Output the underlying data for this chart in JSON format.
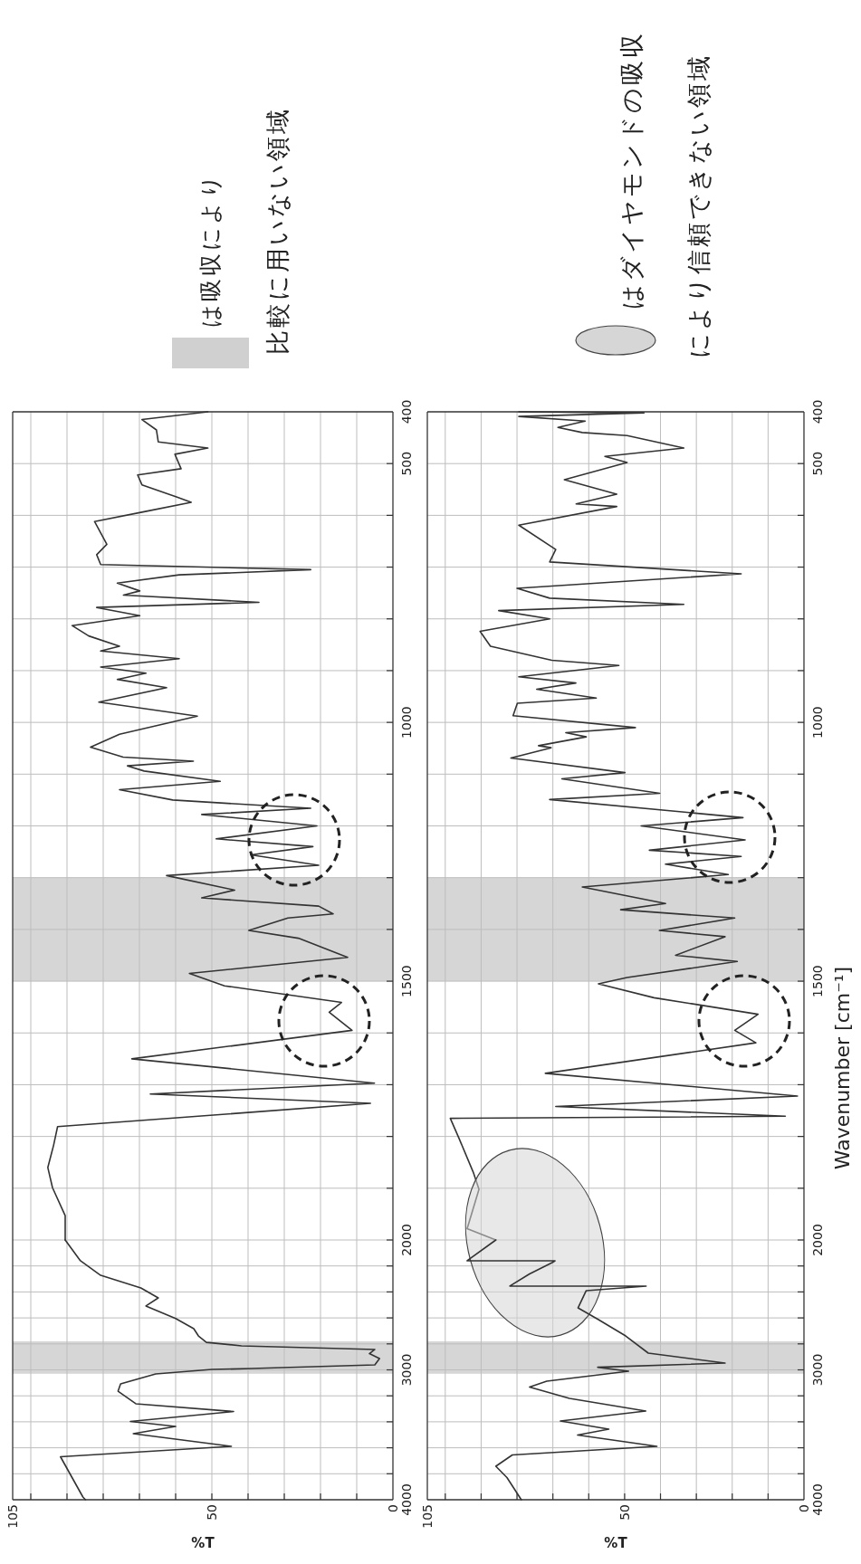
{
  "chart_data": [
    {
      "type": "line",
      "xlim": [
        105,
        0
      ],
      "ylim": [
        2000,
        400
      ],
      "tick_labels": "y",
      "xticks": [
        105,
        {
          "value": 100,
          "label": null
        },
        {
          "value": 90,
          "label": null
        },
        {
          "value": 80,
          "label": null
        },
        {
          "value": 70,
          "label": null
        },
        {
          "value": 60,
          "label": null
        },
        50,
        {
          "value": 40,
          "label": null
        },
        {
          "value": 30,
          "label": null
        },
        {
          "value": 20,
          "label": null
        },
        {
          "value": 10,
          "label": null
        },
        0
      ],
      "yticks": [
        2000,
        {
          "value": 1900,
          "label": null
        },
        {
          "value": 1800,
          "label": null
        },
        {
          "value": 1700,
          "label": null
        },
        {
          "value": 1600,
          "label": null
        },
        1500,
        {
          "value": 1400,
          "label": null
        },
        {
          "value": 1300,
          "label": null
        },
        {
          "value": 1200,
          "label": null
        },
        {
          "value": 1100,
          "label": null
        },
        1000,
        {
          "value": 900,
          "label": null
        },
        {
          "value": 800,
          "label": null
        },
        {
          "value": 700,
          "label": null
        },
        {
          "value": 600,
          "label": null
        },
        500,
        400
      ],
      "grid": true,
      "bands": [
        {
          "axis": "y",
          "from": 1300,
          "to": 1500,
          "color": "#d6d6d6"
        }
      ],
      "annotations": [
        "は吸収により",
        "比較に用いない領域"
      ],
      "series": [
        {
          "color": "#333333",
          "x": [
            51.1,
            69.3,
            65.3,
            64.8,
            51.1,
            60.2,
            58.5,
            70.5,
            69.3,
            59.6,
            55.7,
            68.7,
            82.4,
            79,
            81.8,
            80.7,
            22.7,
            59,
            76.1,
            69.9,
            74.4,
            37,
            81.8,
            69.9,
            88.6,
            84,
            75.5,
            80.7,
            59,
            80.7,
            68.2,
            76.1,
            62.5,
            81.2,
            54,
            75.5,
            83.5,
            74.5,
            55.1,
            73.3,
            68.7,
            47.7,
            75.5,
            60.8,
            22.7,
            52.8,
            21,
            48.8,
            22.1,
            39.2,
            20.5,
            62.5,
            43.7,
            52.8,
            20.5,
            16.5,
            29,
            39.8,
            26.1,
            12.5,
            56.2,
            46.5,
            14.2,
            17.6,
            11.3,
            72.1,
            5.1,
            67,
            6.2,
            92.6,
            93.7,
            95.3,
            94,
            90.5,
            90.5
          ],
          "values": [
            400,
            415,
            435,
            458,
            470,
            482,
            510,
            522,
            541,
            565,
            575,
            593,
            612,
            656,
            676,
            695,
            705,
            715,
            731,
            746,
            754,
            768,
            778,
            794,
            813,
            833,
            853,
            862,
            877,
            893,
            905,
            917,
            933,
            961,
            988,
            1023,
            1048,
            1067,
            1075,
            1084,
            1094,
            1114,
            1130,
            1150,
            1166,
            1178,
            1200,
            1225,
            1240,
            1256,
            1276,
            1296,
            1324,
            1339,
            1355,
            1370,
            1378,
            1402,
            1417,
            1454,
            1485,
            1509,
            1541,
            1560,
            1595,
            1650,
            1697,
            1718,
            1736,
            1781,
            1817,
            1860,
            1899,
            1953,
            2000
          ]
        }
      ]
    },
    {
      "type": "line",
      "xlim": [
        105,
        0
      ],
      "ylim": [
        4000,
        2000
      ],
      "xticks": [
        105,
        {
          "value": 100,
          "label": null
        },
        {
          "value": 90,
          "label": null
        },
        {
          "value": 80,
          "label": null
        },
        {
          "value": 70,
          "label": null
        },
        {
          "value": 60,
          "label": null
        },
        50,
        {
          "value": 40,
          "label": null
        },
        {
          "value": 30,
          "label": null
        },
        {
          "value": 20,
          "label": null
        },
        {
          "value": 10,
          "label": null
        },
        0
      ],
      "yticks": [
        4000,
        {
          "value": 3800,
          "label": null
        },
        {
          "value": 3600,
          "label": null
        },
        {
          "value": 3400,
          "label": null
        },
        {
          "value": 3200,
          "label": null
        },
        3000,
        {
          "value": 2800,
          "label": null
        },
        {
          "value": 2600,
          "label": null
        },
        {
          "value": 2400,
          "label": null
        },
        {
          "value": 2200,
          "label": null
        }
      ],
      "xlabel": "%T",
      "grid": true,
      "bands": [
        {
          "axis": "y",
          "from": 2780,
          "to": 3030,
          "color": "#d6d6d6"
        }
      ],
      "series": [
        {
          "color": "#333333",
          "x": [
            90.5,
            86.3,
            80.7,
            69.6,
            64.8,
            68.2,
            60,
            55,
            53.7,
            51.5,
            41.8,
            5,
            6.5,
            3.7,
            5,
            39,
            50,
            65.5,
            75.2,
            75.9,
            71,
            44,
            72.5,
            60,
            71.7,
            44.6,
            91.8,
            85.6,
            84.9
          ],
          "values": [
            2000,
            2160,
            2272,
            2369,
            2446,
            2508,
            2605,
            2683,
            2739,
            2788,
            2815,
            2843,
            2875,
            2913,
            2962,
            2990,
            2997,
            3031,
            3108,
            3164,
            3261,
            3321,
            3397,
            3436,
            3491,
            3589,
            3669,
            3979,
            4000
          ]
        }
      ]
    },
    {
      "type": "line",
      "xlim": [
        105,
        0
      ],
      "ylim": [
        2000,
        400
      ],
      "tick_labels": "y",
      "xticks": [
        105,
        {
          "value": 100,
          "label": null
        },
        {
          "value": 90,
          "label": null
        },
        {
          "value": 80,
          "label": null
        },
        {
          "value": 70,
          "label": null
        },
        {
          "value": 60,
          "label": null
        },
        50,
        {
          "value": 40,
          "label": null
        },
        {
          "value": 30,
          "label": null
        },
        {
          "value": 20,
          "label": null
        },
        {
          "value": 10,
          "label": null
        },
        0
      ],
      "yticks": [
        2000,
        {
          "value": 1900,
          "label": null
        },
        {
          "value": 1800,
          "label": null
        },
        {
          "value": 1700,
          "label": null
        },
        {
          "value": 1600,
          "label": null
        },
        1500,
        {
          "value": 1400,
          "label": null
        },
        {
          "value": 1300,
          "label": null
        },
        {
          "value": 1200,
          "label": null
        },
        {
          "value": 1100,
          "label": null
        },
        1000,
        {
          "value": 900,
          "label": null
        },
        {
          "value": 800,
          "label": null
        },
        {
          "value": 700,
          "label": null
        },
        {
          "value": 600,
          "label": null
        },
        500,
        400
      ],
      "ylabel": "Wavenumber [cm⁻¹]",
      "grid": true,
      "bands": [
        {
          "axis": "y",
          "from": 1300,
          "to": 1500,
          "color": "#d6d6d6"
        }
      ],
      "annotations": [
        "はダイヤモンドの吸収",
        "により信頼できない領域"
      ],
      "series": [
        {
          "color": "#333333",
          "x": [
            79.5,
            44.6,
            79.5,
            61,
            68.6,
            61.8,
            49.3,
            33.5,
            55.5,
            49.3,
            66.8,
            52.2,
            63.5,
            52.2,
            79.5,
            69.2,
            70.9,
            17.5,
            80,
            70.9,
            33.5,
            85.1,
            70.9,
            90.3,
            87.4,
            70.3,
            51.6,
            79.5,
            63.6,
            74.5,
            57.9,
            79.9,
            81.1,
            47,
            66.4,
            60.7,
            74,
            70.5,
            81.7,
            49.9,
            67.5,
            40.2,
            70.9,
            17,
            45.4,
            16.4,
            43.1,
            17.5,
            38.6,
            21.1,
            61.8,
            38.6,
            51.1,
            19.3,
            40.3,
            22,
            35.8,
            18.6,
            49.3,
            57.3,
            41.8,
            12.8,
            19.3,
            13.4,
            72.1,
            1.8,
            69.2,
            5.2,
            98.6,
            96.2,
            92.2,
            90.6,
            93.9,
            85.9
          ],
          "values": [
            400,
            402,
            409,
            418,
            430,
            440,
            446,
            470,
            486,
            498,
            531,
            559,
            578,
            583,
            619,
            666,
            690,
            713,
            741,
            760,
            772,
            784,
            800,
            824,
            853,
            880,
            890,
            912,
            924,
            936,
            953,
            963,
            987,
            1010,
            1020,
            1028,
            1045,
            1049,
            1069,
            1097,
            1109,
            1137,
            1149,
            1184,
            1200,
            1227,
            1247,
            1259,
            1274,
            1294,
            1318,
            1350,
            1362,
            1378,
            1402,
            1414,
            1450,
            1462,
            1493,
            1505,
            1532,
            1564,
            1595,
            1619,
            1678,
            1722,
            1742,
            1761,
            1765,
            1803,
            1869,
            1902,
            1978,
            2000
          ]
        }
      ]
    },
    {
      "type": "line",
      "xlim": [
        105,
        0
      ],
      "ylim": [
        4000,
        2000
      ],
      "xticks": [
        105,
        {
          "value": 100,
          "label": null
        },
        {
          "value": 90,
          "label": null
        },
        {
          "value": 80,
          "label": null
        },
        {
          "value": 70,
          "label": null
        },
        {
          "value": 60,
          "label": null
        },
        50,
        {
          "value": 40,
          "label": null
        },
        {
          "value": 30,
          "label": null
        },
        {
          "value": 20,
          "label": null
        },
        {
          "value": 10,
          "label": null
        },
        0
      ],
      "yticks": [
        4000,
        {
          "value": 3800,
          "label": null
        },
        {
          "value": 3600,
          "label": null
        },
        {
          "value": 3400,
          "label": null
        },
        {
          "value": 3200,
          "label": null
        },
        3000,
        {
          "value": 2800,
          "label": null
        },
        {
          "value": 2600,
          "label": null
        },
        {
          "value": 2400,
          "label": null
        },
        {
          "value": 2200,
          "label": null
        }
      ],
      "xlabel": "%T",
      "grid": true,
      "bands": [
        {
          "axis": "y",
          "from": 2780,
          "to": 3030,
          "color": "#d6d6d6"
        }
      ],
      "series": [
        {
          "color": "#333333",
          "x": [
            85.9,
            93.9,
            69.4,
            70.2,
            76.5,
            82,
            44,
            60.7,
            63,
            57.5,
            49.7,
            43.4,
            22,
            57.5,
            48.9,
            71.7,
            76.5,
            65.4,
            44.1,
            67.9,
            54.4,
            63.1,
            41,
            81.3,
            85.9,
            82.8,
            78.8
          ],
          "values": [
            2000,
            2160,
            2160,
            2174,
            2261,
            2355,
            2355,
            2390,
            2523,
            2610,
            2739,
            2871,
            2948,
            2980,
            3010,
            3087,
            3132,
            3220,
            3317,
            3394,
            3456,
            3502,
            3589,
            3655,
            3742,
            3829,
            4000
          ]
        }
      ]
    }
  ]
}
